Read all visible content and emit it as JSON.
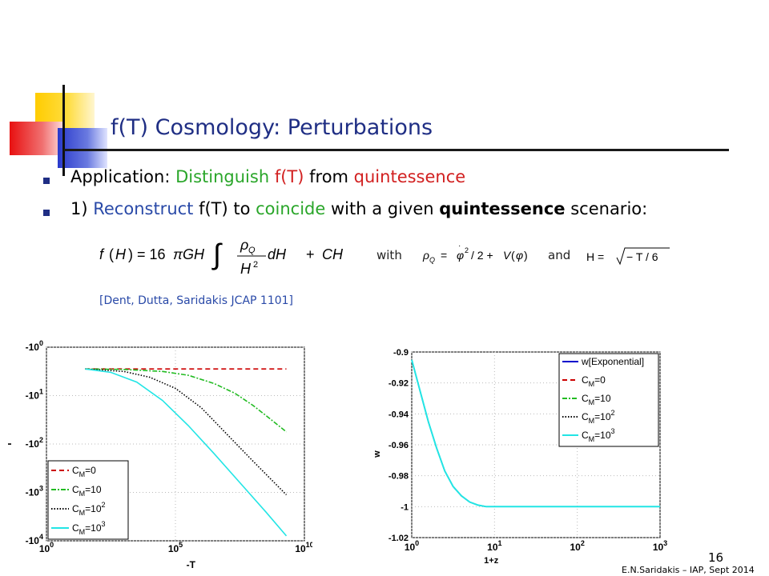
{
  "slide": {
    "title": "f(T) Cosmology: Perturbations",
    "bullet1": {
      "prefix": "Application: ",
      "t1": "Distinguish",
      "t2": " f(T) ",
      "t3": "from ",
      "t4": "quintessence"
    },
    "bullet2": {
      "num": "1)  ",
      "t1": "Reconstruct",
      "t2": " f(T) to ",
      "t3": "coincide",
      "t4": " with a given ",
      "t5": "quintessence",
      "t6": " scenario:"
    },
    "eq_with": "with",
    "eq_and": "and",
    "citation": "[Dent, Dutta, Saridakis  JCAP 1101]",
    "page_number": "16",
    "footer": "E.N.Saridakis – IAP, Sept 2014"
  },
  "chart_data": [
    {
      "type": "line",
      "xlabel": "-T",
      "ylabel": "f",
      "x_scale": "log",
      "y_scale": "log-negative",
      "xlim": [
        1,
        10000000000
      ],
      "x_ticks": [
        "10",
        "10",
        "10"
      ],
      "x_tick_exp": [
        "0",
        "5",
        "10"
      ],
      "y_ticks": [
        "-10",
        "-10",
        "-10",
        "-10",
        "-10"
      ],
      "y_tick_exp": [
        "0",
        "1",
        "2",
        "3",
        "4"
      ],
      "legend_position": "bottom-left",
      "series": [
        {
          "name": "C_M=0",
          "label_base": "C",
          "label_sub": "M",
          "label_tail": "=0",
          "label_sup": "",
          "color": "#cc0000",
          "dash": "6,4",
          "x_exp": [
            1.5,
            3,
            5,
            7,
            9.3
          ],
          "y_exp": [
            0.45,
            0.45,
            0.45,
            0.45,
            0.45
          ]
        },
        {
          "name": "C_M=10",
          "label_base": "C",
          "label_sub": "M",
          "label_tail": "=10",
          "label_sup": "",
          "color": "#22bb22",
          "dash": "6,2,2,2",
          "x_exp": [
            1.5,
            3,
            4.5,
            5.5,
            6.5,
            7.3,
            8,
            8.6,
            9.3
          ],
          "y_exp": [
            0.45,
            0.46,
            0.5,
            0.58,
            0.75,
            0.95,
            1.2,
            1.45,
            1.75
          ]
        },
        {
          "name": "C_M=10^2",
          "label_base": "C",
          "label_sub": "M",
          "label_tail": "=10",
          "label_sup": "2",
          "color": "#000000",
          "dash": "1.5,2",
          "x_exp": [
            1.5,
            3,
            4,
            5,
            6,
            7,
            8,
            9.3
          ],
          "y_exp": [
            0.45,
            0.5,
            0.62,
            0.85,
            1.25,
            1.8,
            2.35,
            3.05
          ]
        },
        {
          "name": "C_M=10^3",
          "label_base": "C",
          "label_sub": "M",
          "label_tail": "=10",
          "label_sup": "3",
          "color": "#22e5e5",
          "dash": "",
          "x_exp": [
            1.5,
            2.5,
            3.5,
            4.5,
            5.5,
            6.5,
            7.5,
            8.5,
            9.3
          ],
          "y_exp": [
            0.45,
            0.52,
            0.72,
            1.1,
            1.62,
            2.2,
            2.8,
            3.4,
            3.9
          ]
        }
      ]
    },
    {
      "type": "line",
      "xlabel": "1+z",
      "ylabel": "w",
      "x_scale": "log",
      "xlim": [
        1,
        1000
      ],
      "ylim": [
        -1.02,
        -0.9
      ],
      "x_ticks": [
        "10",
        "10",
        "10",
        "10"
      ],
      "x_tick_exp": [
        "0",
        "1",
        "2",
        "3"
      ],
      "y_ticks": [
        "-0.9",
        "-0.92",
        "-0.94",
        "-0.96",
        "-0.98",
        "-1",
        "-1.02"
      ],
      "legend_position": "top-right",
      "series": [
        {
          "name": "w[Exponential]",
          "label_base": "w[Exponential]",
          "label_sub": "",
          "label_tail": "",
          "label_sup": "",
          "color": "#0000cc",
          "dash": ""
        },
        {
          "name": "C_M=0",
          "label_base": "C",
          "label_sub": "M",
          "label_tail": "=0",
          "label_sup": "",
          "color": "#cc0000",
          "dash": "6,4"
        },
        {
          "name": "C_M=10",
          "label_base": "C",
          "label_sub": "M",
          "label_tail": "=10",
          "label_sup": "",
          "color": "#22bb22",
          "dash": "6,2,2,2"
        },
        {
          "name": "C_M=10^2",
          "label_base": "C",
          "label_sub": "M",
          "label_tail": "=10",
          "label_sup": "2",
          "color": "#000000",
          "dash": "1.5,2"
        },
        {
          "name": "C_M=10^3",
          "label_base": "C",
          "label_sub": "M",
          "label_tail": "=10",
          "label_sup": "3",
          "color": "#22e5e5",
          "dash": ""
        }
      ],
      "curve": {
        "x_exp": [
          0,
          0.1,
          0.2,
          0.3,
          0.4,
          0.5,
          0.6,
          0.7,
          0.8,
          0.9,
          1.0,
          1.5,
          2,
          3
        ],
        "y": [
          -0.905,
          -0.925,
          -0.945,
          -0.962,
          -0.977,
          -0.987,
          -0.993,
          -0.997,
          -0.999,
          -1.0,
          -1.0,
          -1.0,
          -1.0,
          -1.0
        ]
      }
    }
  ]
}
